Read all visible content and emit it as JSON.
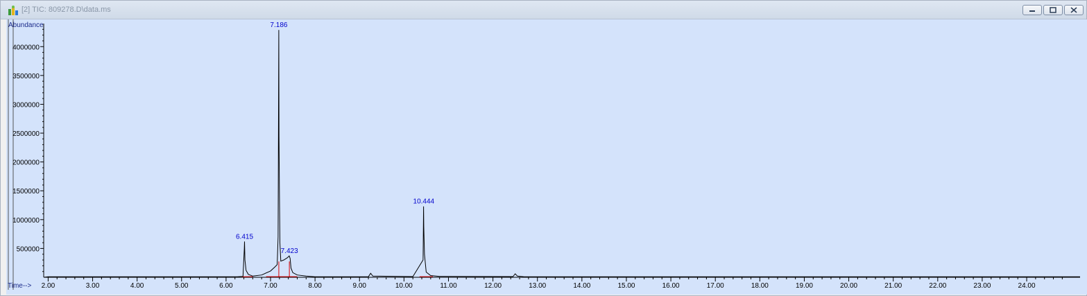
{
  "window": {
    "title": "[2] TIC: 809278.D\\data.ms"
  },
  "colors": {
    "plot_background": "#d4e3fb",
    "trace": "#000000",
    "peak_label": "#0000cc",
    "baseline": "#d90000"
  },
  "chart_data": {
    "type": "line",
    "ylabel": "Abundance",
    "xlabel": "Time-->",
    "xlim": [
      1.9,
      25.2
    ],
    "ylim": [
      0,
      4400000
    ],
    "x_ticks": [
      2.0,
      3.0,
      4.0,
      5.0,
      6.0,
      7.0,
      8.0,
      9.0,
      10.0,
      11.0,
      12.0,
      13.0,
      14.0,
      15.0,
      16.0,
      17.0,
      18.0,
      19.0,
      20.0,
      21.0,
      22.0,
      23.0,
      24.0
    ],
    "x_tick_labels": [
      "2.00",
      "3.00",
      "4.00",
      "5.00",
      "6.00",
      "7.00",
      "8.00",
      "9.00",
      "10.00",
      "11.00",
      "12.00",
      "13.00",
      "14.00",
      "15.00",
      "16.00",
      "17.00",
      "18.00",
      "19.00",
      "20.00",
      "21.00",
      "22.00",
      "23.00",
      "24.00"
    ],
    "y_ticks": [
      500000,
      1000000,
      1500000,
      2000000,
      2500000,
      3000000,
      3500000,
      4000000
    ],
    "y_tick_labels": [
      "500000",
      "1000000",
      "1500000",
      "2000000",
      "2500000",
      "3000000",
      "3500000",
      "4000000"
    ],
    "peak_labels": [
      {
        "x": 6.415,
        "y": 620000,
        "text": "6.415"
      },
      {
        "x": 7.186,
        "y": 4290000,
        "text": "7.186"
      },
      {
        "x": 7.423,
        "y": 370000,
        "text": "7.423"
      },
      {
        "x": 10.444,
        "y": 1230000,
        "text": "10.444"
      }
    ],
    "trace": [
      [
        1.9,
        0
      ],
      [
        2.0,
        8000
      ],
      [
        6.25,
        9000
      ],
      [
        6.38,
        16000
      ],
      [
        6.41,
        500000
      ],
      [
        6.415,
        620000
      ],
      [
        6.425,
        300000
      ],
      [
        6.45,
        120000
      ],
      [
        6.5,
        50000
      ],
      [
        6.6,
        20000
      ],
      [
        6.8,
        40000
      ],
      [
        7.0,
        110000
      ],
      [
        7.1,
        180000
      ],
      [
        7.15,
        220000
      ],
      [
        7.17,
        700000
      ],
      [
        7.178,
        2450000
      ],
      [
        7.186,
        4290000
      ],
      [
        7.19,
        2450000
      ],
      [
        7.2,
        1500000
      ],
      [
        7.21,
        600000
      ],
      [
        7.23,
        280000
      ],
      [
        7.3,
        300000
      ],
      [
        7.38,
        340000
      ],
      [
        7.42,
        370000
      ],
      [
        7.44,
        330000
      ],
      [
        7.46,
        160000
      ],
      [
        7.5,
        80000
      ],
      [
        7.6,
        40000
      ],
      [
        7.8,
        20000
      ],
      [
        8.0,
        10000
      ],
      [
        9.2,
        10000
      ],
      [
        9.25,
        70000
      ],
      [
        9.3,
        20000
      ],
      [
        10.2,
        12000
      ],
      [
        10.43,
        300000
      ],
      [
        10.44,
        1230000
      ],
      [
        10.445,
        880000
      ],
      [
        10.46,
        400000
      ],
      [
        10.5,
        90000
      ],
      [
        10.6,
        30000
      ],
      [
        10.8,
        15000
      ],
      [
        12.45,
        12000
      ],
      [
        12.5,
        60000
      ],
      [
        12.55,
        20000
      ],
      [
        12.7,
        10000
      ],
      [
        25.2,
        8000
      ]
    ],
    "baseline_segments": [
      [
        [
          6.35,
          9000
        ],
        [
          6.6,
          10000
        ]
      ],
      [
        [
          6.9,
          10000
        ],
        [
          7.6,
          10000
        ]
      ],
      [
        [
          10.35,
          10000
        ],
        [
          10.65,
          10000
        ]
      ]
    ],
    "baseline_markers": [
      7.186,
      7.423
    ]
  }
}
